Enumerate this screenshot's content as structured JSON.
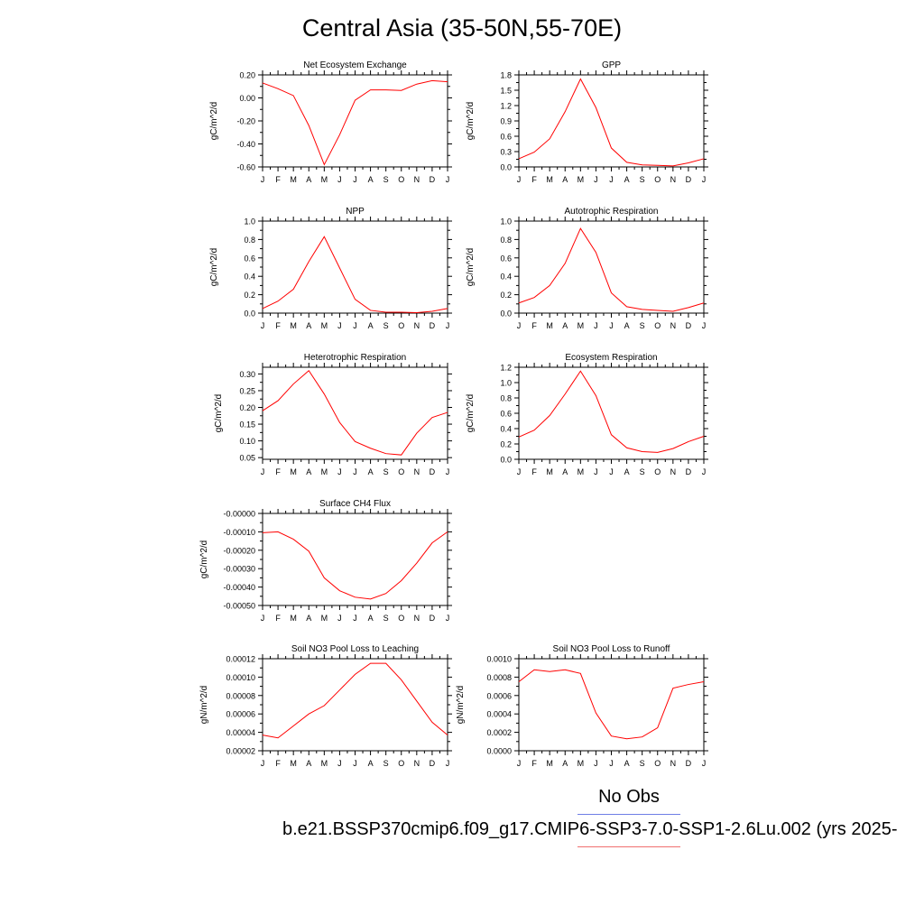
{
  "page": {
    "title": "Central Asia (35-50N,55-70E)",
    "legend": {
      "obs_label": "No Obs",
      "obs_color": "#6f7fe6",
      "case_label": "b.e21.BSSP370cmip6.f09_g17.CMIP6-SSP3-7.0-SSP1-2.6Lu.002 (yrs 2025-",
      "case_color": "#f07070"
    }
  },
  "chart_data": [
    {
      "type": "line",
      "title": "Net Ecosystem Exchange",
      "ylabel": "gC/m^2/d",
      "x": [
        "J",
        "F",
        "M",
        "A",
        "M",
        "J",
        "J",
        "A",
        "S",
        "O",
        "N",
        "D",
        "J"
      ],
      "ylim": [
        -0.6,
        0.2
      ],
      "yticks": [
        "0.20",
        "0.00",
        "-0.20",
        "-0.40",
        "-0.60"
      ],
      "series": [
        {
          "color": "#ff0000",
          "values": [
            0.13,
            0.08,
            0.02,
            -0.24,
            -0.58,
            -0.32,
            -0.02,
            0.07,
            0.07,
            0.065,
            0.12,
            0.15,
            0.14
          ]
        }
      ]
    },
    {
      "type": "line",
      "title": "GPP",
      "ylabel": "gC/m^2/d",
      "x": [
        "J",
        "F",
        "M",
        "A",
        "M",
        "J",
        "J",
        "A",
        "S",
        "O",
        "N",
        "D",
        "J"
      ],
      "ylim": [
        0.0,
        1.8
      ],
      "yticks": [
        "1.8",
        "1.5",
        "1.2",
        "0.9",
        "0.6",
        "0.3",
        "0.0"
      ],
      "series": [
        {
          "color": "#ff0000",
          "values": [
            0.16,
            0.29,
            0.55,
            1.08,
            1.72,
            1.16,
            0.37,
            0.09,
            0.04,
            0.03,
            0.02,
            0.08,
            0.16
          ]
        }
      ]
    },
    {
      "type": "line",
      "title": "NPP",
      "ylabel": "gC/m^2/d",
      "x": [
        "J",
        "F",
        "M",
        "A",
        "M",
        "J",
        "J",
        "A",
        "S",
        "O",
        "N",
        "D",
        "J"
      ],
      "ylim": [
        0.0,
        1.0
      ],
      "yticks": [
        "1.0",
        "0.8",
        "0.6",
        "0.4",
        "0.2",
        "0.0"
      ],
      "series": [
        {
          "color": "#ff0000",
          "values": [
            0.05,
            0.13,
            0.26,
            0.56,
            0.83,
            0.49,
            0.15,
            0.03,
            0.01,
            0.01,
            0.005,
            0.02,
            0.05
          ]
        }
      ]
    },
    {
      "type": "line",
      "title": "Autotrophic Respiration",
      "ylabel": "gC/m^2/d",
      "x": [
        "J",
        "F",
        "M",
        "A",
        "M",
        "J",
        "J",
        "A",
        "S",
        "O",
        "N",
        "D",
        "J"
      ],
      "ylim": [
        0.0,
        1.0
      ],
      "yticks": [
        "1.0",
        "0.8",
        "0.6",
        "0.4",
        "0.2",
        "0.0"
      ],
      "series": [
        {
          "color": "#ff0000",
          "values": [
            0.11,
            0.17,
            0.3,
            0.54,
            0.92,
            0.66,
            0.22,
            0.07,
            0.04,
            0.03,
            0.02,
            0.06,
            0.11
          ]
        }
      ]
    },
    {
      "type": "line",
      "title": "Heterotrophic Respiration",
      "ylabel": "gC/m^2/d",
      "x": [
        "J",
        "F",
        "M",
        "A",
        "M",
        "J",
        "J",
        "A",
        "S",
        "O",
        "N",
        "D",
        "J"
      ],
      "ylim": [
        0.045,
        0.32
      ],
      "yticks": [
        "0.30",
        "0.25",
        "0.20",
        "0.15",
        "0.10",
        "0.05"
      ],
      "series": [
        {
          "color": "#ff0000",
          "values": [
            0.19,
            0.22,
            0.27,
            0.31,
            0.24,
            0.155,
            0.098,
            0.078,
            0.062,
            0.058,
            0.123,
            0.17,
            0.185
          ]
        }
      ]
    },
    {
      "type": "line",
      "title": "Ecosystem Respiration",
      "ylabel": "gC/m^2/d",
      "x": [
        "J",
        "F",
        "M",
        "A",
        "M",
        "J",
        "J",
        "A",
        "S",
        "O",
        "N",
        "D",
        "J"
      ],
      "ylim": [
        0.0,
        1.2
      ],
      "yticks": [
        "1.2",
        "1.0",
        "0.8",
        "0.6",
        "0.4",
        "0.2",
        "0.0"
      ],
      "series": [
        {
          "color": "#ff0000",
          "values": [
            0.29,
            0.38,
            0.57,
            0.85,
            1.15,
            0.83,
            0.32,
            0.15,
            0.1,
            0.09,
            0.14,
            0.23,
            0.3
          ]
        }
      ]
    },
    {
      "type": "line",
      "title": "Surface CH4 Flux",
      "ylabel": "gC/m^2/d",
      "x": [
        "J",
        "F",
        "M",
        "A",
        "M",
        "J",
        "J",
        "A",
        "S",
        "O",
        "N",
        "D",
        "J"
      ],
      "ylim": [
        -0.0005,
        0.0
      ],
      "yticks": [
        "-0.00000",
        "-0.00010",
        "-0.00020",
        "-0.00030",
        "-0.00040",
        "-0.00050"
      ],
      "series": [
        {
          "color": "#ff0000",
          "values": [
            -0.000105,
            -0.0001,
            -0.00014,
            -0.000205,
            -0.00035,
            -0.00042,
            -0.000455,
            -0.000465,
            -0.000435,
            -0.000365,
            -0.00027,
            -0.00016,
            -0.0001
          ]
        }
      ]
    },
    {
      "type": "line",
      "title": "Soil NO3 Pool Loss to Leaching",
      "ylabel": "gN/m^2/d",
      "x": [
        "J",
        "F",
        "M",
        "A",
        "M",
        "J",
        "J",
        "A",
        "S",
        "O",
        "N",
        "D",
        "J"
      ],
      "ylim": [
        2e-05,
        0.00012
      ],
      "yticks": [
        "0.00012",
        "0.00010",
        "0.00008",
        "0.00006",
        "0.00004",
        "0.00002"
      ],
      "series": [
        {
          "color": "#ff0000",
          "values": [
            3.7e-05,
            3.4e-05,
            4.7e-05,
            6e-05,
            6.9e-05,
            8.6e-05,
            0.000103,
            0.000115,
            0.000115,
            9.7e-05,
            7.4e-05,
            5.1e-05,
            3.7e-05
          ]
        }
      ]
    },
    {
      "type": "line",
      "title": "Soil NO3 Pool Loss to Runoff",
      "ylabel": "gN/m^2/d",
      "x": [
        "J",
        "F",
        "M",
        "A",
        "M",
        "J",
        "J",
        "A",
        "S",
        "O",
        "N",
        "D",
        "J"
      ],
      "ylim": [
        0.0,
        0.001
      ],
      "yticks": [
        "0.0010",
        "0.0008",
        "0.0006",
        "0.0004",
        "0.0002",
        "0.0000"
      ],
      "series": [
        {
          "color": "#ff0000",
          "values": [
            0.00075,
            0.00088,
            0.00086,
            0.00088,
            0.00084,
            0.00041,
            0.00016,
            0.00013,
            0.00015,
            0.00025,
            0.00068,
            0.00072,
            0.00075
          ]
        }
      ]
    }
  ]
}
